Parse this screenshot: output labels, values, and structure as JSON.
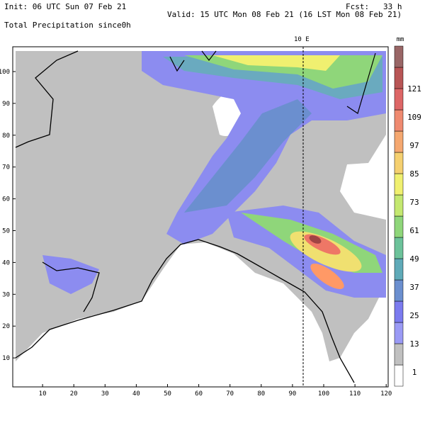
{
  "header": {
    "init": "Init: 06 UTC Sun 07 Feb 21",
    "forecast": "Fcst:   33 h",
    "valid": "Valid: 15 UTC Mon 08 Feb 21 (16 LST Mon 08 Feb 21)",
    "field": "Total Precipitation since0h"
  },
  "map": {
    "meridian_label": "10 E",
    "x_axis": {
      "ticks": [
        10,
        20,
        30,
        40,
        50,
        60,
        70,
        80,
        90,
        100,
        110,
        120
      ]
    },
    "y_axis": {
      "ticks": [
        10,
        20,
        30,
        40,
        50,
        60,
        70,
        80,
        90,
        100
      ]
    }
  },
  "colorbar": {
    "unit": "mm",
    "levels": [
      1,
      13,
      25,
      37,
      49,
      61,
      73,
      85,
      97,
      109,
      121
    ]
  }
}
